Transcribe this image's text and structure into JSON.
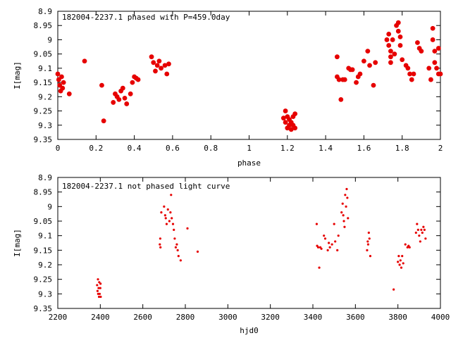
{
  "chart_data": [
    {
      "type": "scatter",
      "title": "182004-2237.1 phased with P=459.0day",
      "xlabel": "phase",
      "ylabel": "I[mag]",
      "xlim": [
        0,
        2
      ],
      "ylim": [
        8.9,
        9.35
      ],
      "y_inverted": true,
      "grid": false,
      "marker": "filled-circle",
      "color": "#e60000",
      "x_ticks": [
        "0",
        "0.2",
        "0.4",
        "0.6",
        "0.8",
        "1",
        "1.2",
        "1.4",
        "1.6",
        "1.8",
        "2"
      ],
      "y_ticks": [
        "8.9",
        "8.95",
        "9",
        "9.05",
        "9.1",
        "9.15",
        "9.2",
        "9.25",
        "9.3",
        "9.35"
      ],
      "points": [
        [
          0.0,
          9.12
        ],
        [
          0.005,
          9.14
        ],
        [
          0.01,
          9.16
        ],
        [
          0.015,
          9.18
        ],
        [
          0.02,
          9.13
        ],
        [
          0.025,
          9.17
        ],
        [
          0.03,
          9.15
        ],
        [
          0.06,
          9.19
        ],
        [
          0.14,
          9.075
        ],
        [
          0.23,
          9.16
        ],
        [
          0.24,
          9.285
        ],
        [
          0.29,
          9.22
        ],
        [
          0.3,
          9.19
        ],
        [
          0.31,
          9.2
        ],
        [
          0.32,
          9.21
        ],
        [
          0.33,
          9.18
        ],
        [
          0.34,
          9.17
        ],
        [
          0.35,
          9.205
        ],
        [
          0.36,
          9.225
        ],
        [
          0.38,
          9.19
        ],
        [
          0.39,
          9.15
        ],
        [
          0.4,
          9.13
        ],
        [
          0.41,
          9.135
        ],
        [
          0.42,
          9.14
        ],
        [
          0.49,
          9.06
        ],
        [
          0.5,
          9.08
        ],
        [
          0.51,
          9.11
        ],
        [
          0.52,
          9.09
        ],
        [
          0.53,
          9.075
        ],
        [
          0.54,
          9.1
        ],
        [
          0.56,
          9.09
        ],
        [
          0.57,
          9.12
        ],
        [
          0.58,
          9.085
        ],
        [
          1.18,
          9.275
        ],
        [
          1.19,
          9.25
        ],
        [
          1.19,
          9.29
        ],
        [
          1.2,
          9.27
        ],
        [
          1.2,
          9.31
        ],
        [
          1.21,
          9.28
        ],
        [
          1.21,
          9.3
        ],
        [
          1.22,
          9.29
        ],
        [
          1.22,
          9.315
        ],
        [
          1.23,
          9.27
        ],
        [
          1.23,
          9.3
        ],
        [
          1.24,
          9.26
        ],
        [
          1.24,
          9.31
        ],
        [
          1.46,
          9.06
        ],
        [
          1.46,
          9.13
        ],
        [
          1.47,
          9.14
        ],
        [
          1.48,
          9.21
        ],
        [
          1.49,
          9.14
        ],
        [
          1.5,
          9.14
        ],
        [
          1.52,
          9.1
        ],
        [
          1.53,
          9.105
        ],
        [
          1.54,
          9.105
        ],
        [
          1.56,
          9.15
        ],
        [
          1.57,
          9.13
        ],
        [
          1.58,
          9.12
        ],
        [
          1.6,
          9.075
        ],
        [
          1.62,
          9.04
        ],
        [
          1.63,
          9.09
        ],
        [
          1.65,
          9.16
        ],
        [
          1.66,
          9.08
        ],
        [
          1.72,
          9.0
        ],
        [
          1.73,
          8.98
        ],
        [
          1.73,
          9.02
        ],
        [
          1.74,
          9.04
        ],
        [
          1.74,
          9.06
        ],
        [
          1.74,
          9.08
        ],
        [
          1.75,
          9.0
        ],
        [
          1.76,
          9.05
        ],
        [
          1.77,
          8.95
        ],
        [
          1.78,
          8.94
        ],
        [
          1.78,
          8.97
        ],
        [
          1.79,
          8.99
        ],
        [
          1.79,
          9.02
        ],
        [
          1.8,
          9.07
        ],
        [
          1.82,
          9.09
        ],
        [
          1.83,
          9.1
        ],
        [
          1.84,
          9.12
        ],
        [
          1.85,
          9.14
        ],
        [
          1.86,
          9.12
        ],
        [
          1.88,
          9.01
        ],
        [
          1.89,
          9.03
        ],
        [
          1.9,
          9.04
        ],
        [
          1.94,
          9.1
        ],
        [
          1.95,
          9.14
        ],
        [
          1.96,
          8.96
        ],
        [
          1.96,
          9.0
        ],
        [
          1.97,
          9.04
        ],
        [
          1.97,
          9.08
        ],
        [
          1.98,
          9.1
        ],
        [
          1.99,
          9.12
        ],
        [
          1.99,
          9.03
        ],
        [
          2.0,
          9.12
        ]
      ]
    },
    {
      "type": "scatter",
      "title": "182004-2237.1 not phased light curve",
      "xlabel": "hjd0",
      "ylabel": "I[mag]",
      "xlim": [
        2200,
        4000
      ],
      "ylim": [
        8.9,
        9.35
      ],
      "y_inverted": true,
      "grid": false,
      "marker": "small-dot",
      "color": "#e60000",
      "x_ticks": [
        "2200",
        "2400",
        "2600",
        "2800",
        "3000",
        "3200",
        "3400",
        "3600",
        "3800",
        "4000"
      ],
      "y_ticks": [
        "8.9",
        "8.95",
        "9",
        "9.05",
        "9.1",
        "9.15",
        "9.2",
        "9.25",
        "9.3",
        "9.35"
      ],
      "points": [
        [
          2385,
          9.27
        ],
        [
          2387,
          9.29
        ],
        [
          2389,
          9.25
        ],
        [
          2390,
          9.3
        ],
        [
          2392,
          9.28
        ],
        [
          2394,
          9.31
        ],
        [
          2395,
          9.26
        ],
        [
          2397,
          9.3
        ],
        [
          2400,
          9.28
        ],
        [
          2401,
          9.265
        ],
        [
          2402,
          9.31
        ],
        [
          2680,
          9.13
        ],
        [
          2682,
          9.11
        ],
        [
          2683,
          9.14
        ],
        [
          2687,
          9.02
        ],
        [
          2700,
          9.0
        ],
        [
          2705,
          9.03
        ],
        [
          2708,
          9.04
        ],
        [
          2712,
          9.06
        ],
        [
          2718,
          9.01
        ],
        [
          2725,
          9.05
        ],
        [
          2730,
          9.02
        ],
        [
          2733,
          8.96
        ],
        [
          2736,
          9.04
        ],
        [
          2742,
          9.06
        ],
        [
          2746,
          9.08
        ],
        [
          2750,
          9.11
        ],
        [
          2755,
          9.14
        ],
        [
          2760,
          9.13
        ],
        [
          2764,
          9.15
        ],
        [
          2768,
          9.17
        ],
        [
          2778,
          9.185
        ],
        [
          2810,
          9.075
        ],
        [
          2858,
          9.155
        ],
        [
          3418,
          9.06
        ],
        [
          3420,
          9.135
        ],
        [
          3425,
          9.14
        ],
        [
          3430,
          9.21
        ],
        [
          3435,
          9.14
        ],
        [
          3440,
          9.145
        ],
        [
          3452,
          9.1
        ],
        [
          3458,
          9.11
        ],
        [
          3470,
          9.15
        ],
        [
          3475,
          9.125
        ],
        [
          3480,
          9.14
        ],
        [
          3490,
          9.13
        ],
        [
          3500,
          9.06
        ],
        [
          3505,
          9.12
        ],
        [
          3515,
          9.15
        ],
        [
          3520,
          9.1
        ],
        [
          3535,
          9.02
        ],
        [
          3540,
          8.99
        ],
        [
          3543,
          9.03
        ],
        [
          3546,
          9.05
        ],
        [
          3549,
          9.07
        ],
        [
          3552,
          8.96
        ],
        [
          3556,
          9.0
        ],
        [
          3559,
          8.94
        ],
        [
          3562,
          8.97
        ],
        [
          3565,
          9.04
        ],
        [
          3655,
          9.15
        ],
        [
          3658,
          9.12
        ],
        [
          3660,
          9.13
        ],
        [
          3663,
          9.09
        ],
        [
          3666,
          9.11
        ],
        [
          3670,
          9.17
        ],
        [
          3780,
          9.285
        ],
        [
          3800,
          9.19
        ],
        [
          3804,
          9.17
        ],
        [
          3808,
          9.2
        ],
        [
          3812,
          9.185
        ],
        [
          3816,
          9.21
        ],
        [
          3820,
          9.17
        ],
        [
          3825,
          9.195
        ],
        [
          3835,
          9.13
        ],
        [
          3845,
          9.14
        ],
        [
          3850,
          9.135
        ],
        [
          3855,
          9.14
        ],
        [
          3885,
          9.09
        ],
        [
          3890,
          9.06
        ],
        [
          3895,
          9.08
        ],
        [
          3900,
          9.1
        ],
        [
          3905,
          9.12
        ],
        [
          3910,
          9.08
        ],
        [
          3915,
          9.09
        ],
        [
          3920,
          9.07
        ],
        [
          3925,
          9.08
        ],
        [
          3930,
          9.11
        ]
      ]
    }
  ]
}
